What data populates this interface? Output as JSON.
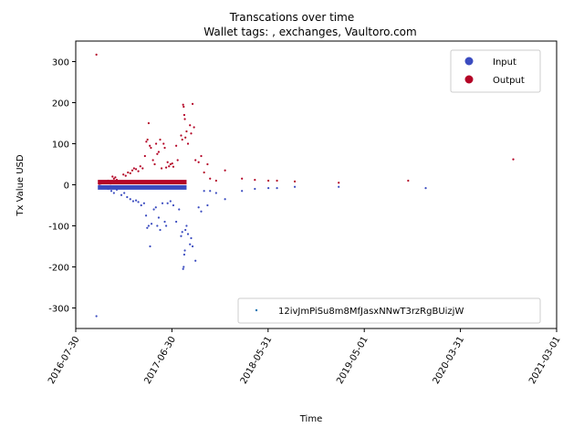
{
  "chart_data": {
    "type": "scatter",
    "title": "Transcations over time",
    "subtitle": "Wallet tags: , exchanges, Vaultoro.com",
    "xlabel": "Time",
    "ylabel": "Tx Value USD",
    "x_range": [
      "2016-07-30",
      "2021-03-01"
    ],
    "ylim": [
      -350,
      350
    ],
    "x_ticks": [
      "2016-07-30",
      "2017-06-30",
      "2018-05-31",
      "2019-05-01",
      "2020-03-31",
      "2021-03-01"
    ],
    "y_ticks": [
      -300,
      -200,
      -100,
      0,
      100,
      200,
      300
    ],
    "grid": false,
    "legends": {
      "upper_right": [
        {
          "label": "Input",
          "color": "#3b4cc0"
        },
        {
          "label": "Output",
          "color": "#b40426"
        }
      ],
      "lower_right": [
        {
          "label": "12ivJmPiSu8m8MfJasxNNwT3rzRgBUizjW",
          "color": "#1f77b4"
        }
      ]
    },
    "series": [
      {
        "name": "Output",
        "color": "#b40426",
        "points": [
          [
            "2016-10-10",
            317
          ],
          [
            "2016-10-20",
            2
          ],
          [
            "2016-10-25",
            3
          ],
          [
            "2016-11-01",
            5
          ],
          [
            "2016-11-05",
            8
          ],
          [
            "2016-11-10",
            4
          ],
          [
            "2016-11-15",
            6
          ],
          [
            "2016-11-20",
            10
          ],
          [
            "2016-11-28",
            3
          ],
          [
            "2016-12-05",
            20
          ],
          [
            "2016-12-10",
            15
          ],
          [
            "2016-12-15",
            18
          ],
          [
            "2016-12-20",
            12
          ],
          [
            "2016-12-28",
            8
          ],
          [
            "2017-01-05",
            5
          ],
          [
            "2017-01-12",
            25
          ],
          [
            "2017-01-20",
            22
          ],
          [
            "2017-01-28",
            30
          ],
          [
            "2017-02-05",
            28
          ],
          [
            "2017-02-12",
            35
          ],
          [
            "2017-02-18",
            40
          ],
          [
            "2017-02-25",
            38
          ],
          [
            "2017-03-05",
            33
          ],
          [
            "2017-03-12",
            45
          ],
          [
            "2017-03-20",
            40
          ],
          [
            "2017-03-28",
            70
          ],
          [
            "2017-04-02",
            105
          ],
          [
            "2017-04-06",
            110
          ],
          [
            "2017-04-10",
            150
          ],
          [
            "2017-04-14",
            95
          ],
          [
            "2017-04-18",
            90
          ],
          [
            "2017-04-25",
            60
          ],
          [
            "2017-05-01",
            50
          ],
          [
            "2017-05-06",
            100
          ],
          [
            "2017-05-10",
            75
          ],
          [
            "2017-05-15",
            80
          ],
          [
            "2017-05-20",
            110
          ],
          [
            "2017-05-25",
            40
          ],
          [
            "2017-06-01",
            100
          ],
          [
            "2017-06-05",
            90
          ],
          [
            "2017-06-10",
            42
          ],
          [
            "2017-06-15",
            55
          ],
          [
            "2017-06-20",
            45
          ],
          [
            "2017-06-25",
            50
          ],
          [
            "2017-07-01",
            52
          ],
          [
            "2017-07-05",
            44
          ],
          [
            "2017-07-15",
            95
          ],
          [
            "2017-07-20",
            60
          ],
          [
            "2017-08-01",
            120
          ],
          [
            "2017-08-05",
            110
          ],
          [
            "2017-08-08",
            195
          ],
          [
            "2017-08-10",
            190
          ],
          [
            "2017-08-12",
            170
          ],
          [
            "2017-08-14",
            160
          ],
          [
            "2017-08-16",
            115
          ],
          [
            "2017-08-20",
            130
          ],
          [
            "2017-08-25",
            100
          ],
          [
            "2017-09-01",
            145
          ],
          [
            "2017-09-05",
            125
          ],
          [
            "2017-09-10",
            197
          ],
          [
            "2017-09-15",
            140
          ],
          [
            "2017-09-20",
            60
          ],
          [
            "2017-10-01",
            55
          ],
          [
            "2017-10-10",
            70
          ],
          [
            "2017-10-20",
            30
          ],
          [
            "2017-11-01",
            50
          ],
          [
            "2017-11-10",
            15
          ],
          [
            "2017-12-01",
            10
          ],
          [
            "2018-01-01",
            35
          ],
          [
            "2018-03-01",
            15
          ],
          [
            "2018-04-15",
            12
          ],
          [
            "2018-06-01",
            10
          ],
          [
            "2018-07-01",
            10
          ],
          [
            "2018-09-01",
            8
          ],
          [
            "2019-02-01",
            5
          ],
          [
            "2019-10-01",
            10
          ],
          [
            "2020-10-01",
            62
          ]
        ]
      },
      {
        "name": "Input",
        "color": "#3b4cc0",
        "points": [
          [
            "2016-10-10",
            -320
          ],
          [
            "2016-10-20",
            -5
          ],
          [
            "2016-10-25",
            -3
          ],
          [
            "2016-11-01",
            -8
          ],
          [
            "2016-11-10",
            -5
          ],
          [
            "2016-11-20",
            -10
          ],
          [
            "2016-12-01",
            -15
          ],
          [
            "2016-12-10",
            -20
          ],
          [
            "2016-12-20",
            -12
          ],
          [
            "2017-01-05",
            -25
          ],
          [
            "2017-01-15",
            -20
          ],
          [
            "2017-01-25",
            -30
          ],
          [
            "2017-02-05",
            -35
          ],
          [
            "2017-02-15",
            -40
          ],
          [
            "2017-02-25",
            -38
          ],
          [
            "2017-03-05",
            -42
          ],
          [
            "2017-03-15",
            -50
          ],
          [
            "2017-03-25",
            -45
          ],
          [
            "2017-04-01",
            -75
          ],
          [
            "2017-04-05",
            -105
          ],
          [
            "2017-04-10",
            -100
          ],
          [
            "2017-04-15",
            -150
          ],
          [
            "2017-04-20",
            -95
          ],
          [
            "2017-04-28",
            -60
          ],
          [
            "2017-05-05",
            -55
          ],
          [
            "2017-05-10",
            -100
          ],
          [
            "2017-05-15",
            -80
          ],
          [
            "2017-05-20",
            -110
          ],
          [
            "2017-05-28",
            -45
          ],
          [
            "2017-06-05",
            -90
          ],
          [
            "2017-06-10",
            -100
          ],
          [
            "2017-06-15",
            -45
          ],
          [
            "2017-06-25",
            -40
          ],
          [
            "2017-07-05",
            -50
          ],
          [
            "2017-07-15",
            -90
          ],
          [
            "2017-07-25",
            -60
          ],
          [
            "2017-08-01",
            -125
          ],
          [
            "2017-08-05",
            -115
          ],
          [
            "2017-08-08",
            -205
          ],
          [
            "2017-08-10",
            -200
          ],
          [
            "2017-08-12",
            -170
          ],
          [
            "2017-08-14",
            -160
          ],
          [
            "2017-08-16",
            -110
          ],
          [
            "2017-08-20",
            -100
          ],
          [
            "2017-08-25",
            -120
          ],
          [
            "2017-09-01",
            -145
          ],
          [
            "2017-09-05",
            -130
          ],
          [
            "2017-09-10",
            -150
          ],
          [
            "2017-09-20",
            -185
          ],
          [
            "2017-10-01",
            -55
          ],
          [
            "2017-10-10",
            -65
          ],
          [
            "2017-10-20",
            -15
          ],
          [
            "2017-11-01",
            -50
          ],
          [
            "2017-11-10",
            -15
          ],
          [
            "2017-12-01",
            -20
          ],
          [
            "2018-01-01",
            -35
          ],
          [
            "2018-03-01",
            -15
          ],
          [
            "2018-04-15",
            -10
          ],
          [
            "2018-06-01",
            -8
          ],
          [
            "2018-07-01",
            -8
          ],
          [
            "2018-09-01",
            -5
          ],
          [
            "2019-02-01",
            -5
          ],
          [
            "2019-12-01",
            -8
          ]
        ]
      }
    ],
    "dense_bands": [
      {
        "series": "Output",
        "from": "2016-10-15",
        "to": "2017-08-20",
        "y_from": 1,
        "y_to": 12
      },
      {
        "series": "Input",
        "from": "2016-10-15",
        "to": "2017-08-20",
        "y_from": -12,
        "y_to": -1
      }
    ]
  }
}
